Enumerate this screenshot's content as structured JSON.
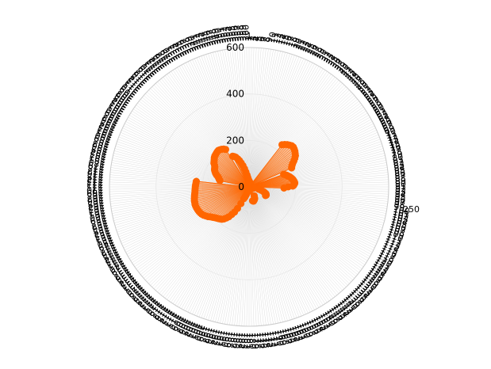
{
  "chart_data": {
    "type": "radar",
    "title": "",
    "radial_axis": {
      "range": [
        0,
        600
      ],
      "tick_values": [
        0,
        200,
        400,
        600
      ],
      "tick_labels": [
        "0",
        "200",
        "400",
        "600"
      ]
    },
    "angular_axis": {
      "category_count": 360,
      "first_label": "1",
      "direction": "clockwise",
      "rotation_deg": 90,
      "visible_label": "250"
    },
    "grid": true,
    "legend": "none",
    "colors": {
      "series": "#ff6600",
      "fill": "#ff6600",
      "spoke": "#dddddd",
      "ring": "#ffffff",
      "label": "#000000"
    },
    "series": [
      {
        "name": "",
        "fill": true,
        "segments": [
          {
            "theta": [
              0,
              1,
              2,
              3,
              4,
              5,
              6,
              8,
              10,
              12
            ],
            "r": [
              24,
              25,
              24,
              23,
              22,
              21,
              20,
              19,
              18,
              17
            ]
          },
          {
            "theta": [
              38,
              40,
              42,
              44,
              46,
              48,
              50,
              52,
              54,
              56,
              58,
              60,
              62,
              64,
              66
            ],
            "r": [
              230,
              238,
              245,
              250,
              255,
              256,
              253,
              250,
              245,
              240,
              232,
              222,
              212,
              205,
              200
            ]
          },
          {
            "theta": [
              70,
              71,
              72,
              73,
              74,
              75,
              76,
              77,
              78,
              79,
              80,
              81,
              82,
              83,
              84,
              85,
              86,
              87,
              88,
              89,
              90,
              92
            ],
            "r": [
              158,
              162,
              166,
              170,
              172,
              176,
              180,
              182,
              185,
              188,
              190,
              192,
              193,
              195,
              196,
              197,
              196,
              194,
              192,
              188,
              168,
              150
            ]
          },
          {
            "theta": [
              98,
              100,
              102,
              104,
              106
            ],
            "r": [
              22,
              23,
              22,
              21,
              20
            ]
          },
          {
            "theta": [
              104,
              106,
              108,
              110,
              112,
              114,
              116,
              118
            ],
            "r": [
              42,
              55,
              65,
              72,
              78,
              80,
              82,
              80
            ]
          },
          {
            "theta": [
              125,
              140,
              155,
              170,
              185,
              195,
              205
            ],
            "r": [
              14,
              12,
              12,
              10,
              10,
              9,
              9
            ]
          },
          {
            "theta": [
              150,
              152,
              154,
              156,
              158,
              160,
              162,
              164,
              166
            ],
            "r": [
              44,
              48,
              55,
              58,
              60,
              62,
              64,
              64,
              62
            ]
          },
          {
            "theta": [
              198,
              200,
              202,
              204,
              206,
              208,
              210,
              212,
              214,
              216,
              218,
              220,
              222,
              224,
              226,
              228,
              230,
              232,
              234,
              236,
              238,
              240,
              242,
              244,
              246,
              248,
              250,
              252,
              254,
              256,
              258,
              260,
              262,
              264,
              266,
              268,
              270,
              272,
              274,
              276
            ],
            "r": [
              30,
              38,
              48,
              56,
              80,
              105,
              125,
              140,
              155,
              165,
              175,
              182,
              186,
              190,
              194,
              198,
              204,
              210,
              218,
              224,
              230,
              235,
              238,
              240,
              242,
              243,
              244,
              244,
              243,
              242,
              240,
              238,
              236,
              234,
              233,
              232,
              231,
              230,
              229,
              228
            ]
          },
          {
            "theta": [
              282,
              284,
              286,
              288,
              290,
              292,
              294,
              296,
              298,
              300,
              302,
              304,
              306,
              308,
              310,
              312,
              314,
              316,
              318,
              320,
              322,
              324,
              326,
              328
            ],
            "r": [
              128,
              132,
              136,
              140,
              148,
              155,
              160,
              165,
              168,
              170,
              175,
              182,
              186,
              190,
              195,
              198,
              200,
              202,
              204,
              205,
              203,
              200,
              196,
              190
            ]
          },
          {
            "theta": [
              332,
              334,
              336,
              338,
              340,
              342,
              344,
              346,
              348,
              350,
              352,
              354,
              356,
              358,
              359
            ],
            "r": [
              150,
              145,
              140,
              130,
              120,
              108,
              95,
              80,
              65,
              52,
              42,
              35,
              30,
              27,
              25
            ]
          }
        ]
      }
    ]
  }
}
